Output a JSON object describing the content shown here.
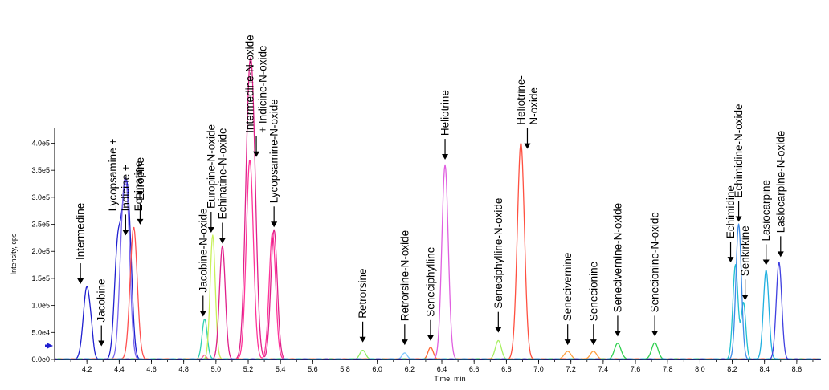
{
  "chart_data": {
    "type": "line",
    "xlabel": "Time, min",
    "ylabel": "Intensity, cps",
    "xlim": [
      4.0,
      8.75
    ],
    "ylim": [
      0,
      420000
    ],
    "x_ticks": [
      "4.2",
      "4.4",
      "4.6",
      "4.8",
      "5.0",
      "5.2",
      "5.4",
      "5.6",
      "5.8",
      "6.0",
      "6.2",
      "6.4",
      "6.6",
      "6.8",
      "7.0",
      "7.2",
      "7.4",
      "7.6",
      "7.8",
      "8.0",
      "8.2",
      "8.4",
      "8.6"
    ],
    "y_ticks": [
      {
        "value": 0,
        "label": "0.0e0"
      },
      {
        "value": 50000,
        "label": "5.0e4"
      },
      {
        "value": 100000,
        "label": "1.0e5"
      },
      {
        "value": 150000,
        "label": "1.5e5"
      },
      {
        "value": 200000,
        "label": "2.0e5"
      },
      {
        "value": 250000,
        "label": "2.5e5"
      },
      {
        "value": 300000,
        "label": "3.0e5"
      },
      {
        "value": 350000,
        "label": "3.5e5"
      },
      {
        "value": 400000,
        "label": "4.0e5"
      }
    ],
    "series": [
      {
        "color": "#1f1fd0",
        "peaks": [
          [
            4.2,
            135000,
            0.022
          ],
          [
            4.23,
            15000,
            0.01
          ],
          [
            4.39,
            200000,
            0.02
          ],
          [
            4.43,
            215000,
            0.02
          ],
          [
            4.46,
            220000,
            0.02
          ]
        ]
      },
      {
        "color": "#7b68ee",
        "peaks": [
          [
            4.42,
            205000,
            0.02
          ],
          [
            4.45,
            240000,
            0.02
          ]
        ]
      },
      {
        "color": "#ff5050",
        "peaks": [
          [
            4.49,
            245000,
            0.022
          ]
        ]
      },
      {
        "color": "#2fd0b0",
        "peaks": [
          [
            4.93,
            75000,
            0.016
          ]
        ]
      },
      {
        "color": "#ff6090",
        "peaks": [
          [
            4.93,
            8000,
            0.01
          ]
        ]
      },
      {
        "color": "#c8f05a",
        "peaks": [
          [
            4.98,
            230000,
            0.016
          ]
        ]
      },
      {
        "color": "#e0208a",
        "peaks": [
          [
            5.04,
            210000,
            0.018
          ],
          [
            5.2,
            355000,
            0.022
          ],
          [
            5.23,
            350000,
            0.022
          ],
          [
            5.36,
            240000,
            0.02
          ]
        ]
      },
      {
        "color": "#ff3399",
        "peaks": [
          [
            5.21,
            370000,
            0.022
          ],
          [
            5.35,
            235000,
            0.02
          ]
        ]
      },
      {
        "color": "#90ee60",
        "peaks": [
          [
            5.91,
            17000,
            0.018
          ]
        ]
      },
      {
        "color": "#7ec8ff",
        "peaks": [
          [
            6.17,
            12000,
            0.016
          ]
        ]
      },
      {
        "color": "#ff6633",
        "peaks": [
          [
            6.33,
            22000,
            0.016
          ]
        ]
      },
      {
        "color": "#e060e0",
        "peaks": [
          [
            6.42,
            360000,
            0.02
          ]
        ]
      },
      {
        "color": "#a8f060",
        "peaks": [
          [
            6.75,
            35000,
            0.018
          ]
        ]
      },
      {
        "color": "#ff5040",
        "peaks": [
          [
            6.89,
            400000,
            0.022
          ]
        ]
      },
      {
        "color": "#ffa040",
        "peaks": [
          [
            7.18,
            15000,
            0.02
          ],
          [
            7.34,
            15000,
            0.02
          ]
        ]
      },
      {
        "color": "#30d050",
        "peaks": [
          [
            7.49,
            30000,
            0.02
          ],
          [
            7.72,
            30000,
            0.02
          ]
        ]
      },
      {
        "color": "#20c0d0",
        "peaks": [
          [
            8.22,
            175000,
            0.016
          ],
          [
            8.27,
            105000,
            0.014
          ]
        ]
      },
      {
        "color": "#3c8ce8",
        "peaks": [
          [
            8.24,
            250000,
            0.017
          ]
        ]
      },
      {
        "color": "#20b0e0",
        "peaks": [
          [
            8.41,
            165000,
            0.017
          ]
        ]
      },
      {
        "color": "#4040e0",
        "peaks": [
          [
            8.49,
            180000,
            0.017
          ]
        ]
      }
    ],
    "annotations": [
      {
        "lines": [
          "Intermedine"
        ],
        "x": 4.16,
        "y": 135000,
        "arrow": true
      },
      {
        "lines": [
          "Jacobine"
        ],
        "x": 4.29,
        "y": 20000,
        "arrow": true
      },
      {
        "lines": [
          "Lycopsamine +",
          "Indicine +",
          "Echinatine"
        ],
        "x": 4.44,
        "y": 225000,
        "arrow": true
      },
      {
        "lines": [
          "Europine"
        ],
        "x": 4.53,
        "y": 245000,
        "arrow": true
      },
      {
        "lines": [
          "Jacobine-N-oxide"
        ],
        "x": 4.92,
        "y": 75000,
        "arrow": true
      },
      {
        "lines": [
          "Europine-N-oxide"
        ],
        "x": 4.97,
        "y": 230000,
        "arrow": true
      },
      {
        "lines": [
          "Echinatine-N-oxide"
        ],
        "x": 5.04,
        "y": 210000,
        "arrow": true
      },
      {
        "lines": [
          "Intermedine-N-oxide",
          "+ Indicine-N-oxide"
        ],
        "x": 5.25,
        "y": 370000,
        "arrow": true
      },
      {
        "lines": [
          "Lycopsamine-N-oxide"
        ],
        "x": 5.36,
        "y": 240000,
        "arrow": true
      },
      {
        "lines": [
          "Retrorsine"
        ],
        "x": 5.91,
        "y": 27000,
        "arrow": true
      },
      {
        "lines": [
          "Retrorsine-N-oxide"
        ],
        "x": 6.17,
        "y": 22000,
        "arrow": true
      },
      {
        "lines": [
          "Seneciphylline"
        ],
        "x": 6.33,
        "y": 30000,
        "arrow": true
      },
      {
        "lines": [
          "Heliotrine"
        ],
        "x": 6.42,
        "y": 365000,
        "arrow": true
      },
      {
        "lines": [
          "Seneciphylline-N-oxide"
        ],
        "x": 6.75,
        "y": 45000,
        "arrow": true
      },
      {
        "lines": [
          "Heliotrine-",
          "N-oxide"
        ],
        "x": 6.93,
        "y": 385000,
        "arrow": true
      },
      {
        "lines": [
          "Senecivernine"
        ],
        "x": 7.18,
        "y": 22000,
        "arrow": true
      },
      {
        "lines": [
          "Senecionine"
        ],
        "x": 7.34,
        "y": 22000,
        "arrow": true
      },
      {
        "lines": [
          "Senecivernine-N-oxide"
        ],
        "x": 7.49,
        "y": 38000,
        "arrow": true
      },
      {
        "lines": [
          "Senecionine-N-oxide"
        ],
        "x": 7.72,
        "y": 38000,
        "arrow": true
      },
      {
        "lines": [
          "Echimidine"
        ],
        "x": 8.19,
        "y": 175000,
        "arrow": true
      },
      {
        "lines": [
          "Echimidine-N-oxide"
        ],
        "x": 8.24,
        "y": 250000,
        "arrow": true
      },
      {
        "lines": [
          "Senkirkine"
        ],
        "x": 8.28,
        "y": 105000,
        "arrow": true
      },
      {
        "lines": [
          "Lasiocarpine"
        ],
        "x": 8.41,
        "y": 170000,
        "arrow": true
      },
      {
        "lines": [
          "Lasiocarpine-N-oxide"
        ],
        "x": 8.5,
        "y": 185000,
        "arrow": true
      }
    ]
  }
}
